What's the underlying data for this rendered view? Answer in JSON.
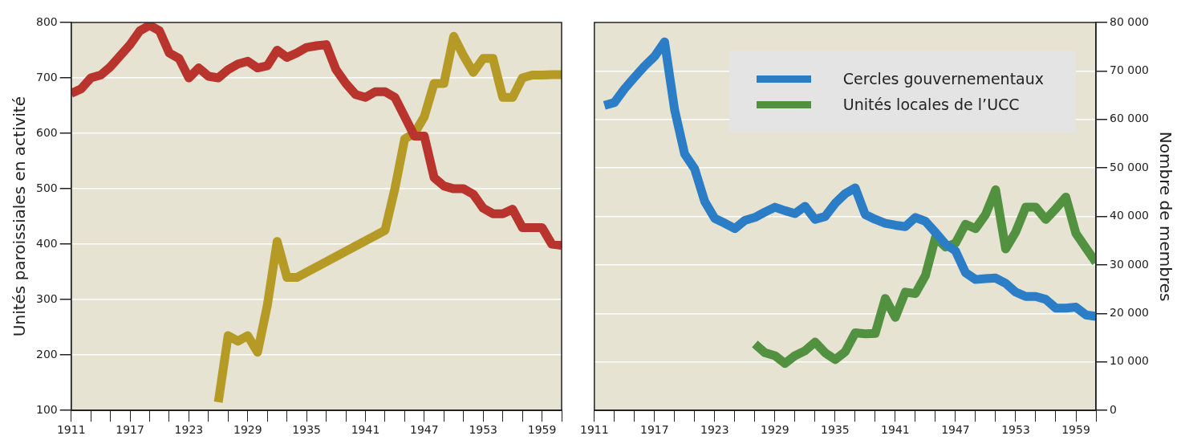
{
  "chart_data": [
    {
      "type": "line",
      "ylabel": "Unités paroissiales en activité",
      "xlim": [
        1911,
        1961
      ],
      "xticks": [
        1911,
        {
          "value": 1913,
          "label": null
        },
        {
          "value": 1915,
          "label": null
        },
        1917,
        {
          "value": 1919,
          "label": null
        },
        {
          "value": 1921,
          "label": null
        },
        1923,
        {
          "value": 1925,
          "label": null
        },
        {
          "value": 1927,
          "label": null
        },
        1929,
        {
          "value": 1931,
          "label": null
        },
        {
          "value": 1933,
          "label": null
        },
        1935,
        {
          "value": 1937,
          "label": null
        },
        {
          "value": 1939,
          "label": null
        },
        1941,
        {
          "value": 1943,
          "label": null
        },
        {
          "value": 1945,
          "label": null
        },
        1947,
        {
          "value": 1949,
          "label": null
        },
        {
          "value": 1951,
          "label": null
        },
        1953,
        {
          "value": 1955,
          "label": null
        },
        {
          "value": 1957,
          "label": null
        },
        1959,
        {
          "value": 1961,
          "label": null
        }
      ],
      "ylim": [
        100,
        800
      ],
      "yticks": [
        100,
        200,
        300,
        400,
        500,
        600,
        700,
        800
      ],
      "grid": "y",
      "legend": false,
      "marker": "none",
      "line_style": "solid",
      "series": [
        {
          "color": "#b8342c",
          "x": [
            1911,
            1912,
            1913,
            1914,
            1915,
            1916,
            1917,
            1918,
            1919,
            1920,
            1921,
            1922,
            1923,
            1924,
            1925,
            1926,
            1927,
            1928,
            1929,
            1930,
            1931,
            1932,
            1933,
            1934,
            1935,
            1936,
            1937,
            1938,
            1939,
            1940,
            1941,
            1942,
            1943,
            1944,
            1945,
            1946,
            1947,
            1948,
            1949,
            1950,
            1951,
            1952,
            1953,
            1954,
            1955,
            1956,
            1957,
            1958,
            1959,
            1960,
            1961
          ],
          "values": [
            672,
            680,
            700,
            705,
            720,
            740,
            760,
            785,
            795,
            785,
            745,
            735,
            700,
            718,
            703,
            700,
            715,
            725,
            730,
            718,
            722,
            750,
            737,
            745,
            755,
            758,
            760,
            715,
            690,
            670,
            665,
            675,
            675,
            665,
            630,
            595,
            595,
            520,
            505,
            500,
            500,
            490,
            465,
            455,
            455,
            463,
            430,
            430,
            430,
            400,
            398
          ]
        },
        {
          "color": "#b59a26",
          "x": [
            1926,
            1927,
            1928,
            1929,
            1930,
            1931,
            1932,
            1933,
            1934,
            1943,
            1944,
            1945,
            1946,
            1947,
            1948,
            1949,
            1950,
            1951,
            1952,
            1953,
            1954,
            1955,
            1956,
            1957,
            1958,
            1959,
            1960,
            1961
          ],
          "values": [
            115,
            235,
            225,
            235,
            205,
            290,
            405,
            340,
            340,
            425,
            500,
            590,
            600,
            630,
            690,
            690,
            775,
            740,
            710,
            735,
            735,
            665,
            665,
            700,
            705,
            705,
            706,
            706
          ]
        }
      ]
    },
    {
      "type": "line",
      "y2label": "Nombre de membres",
      "xlim": [
        1911,
        1961
      ],
      "xticks": [
        1911,
        {
          "value": 1913,
          "label": null
        },
        {
          "value": 1915,
          "label": null
        },
        1917,
        {
          "value": 1919,
          "label": null
        },
        {
          "value": 1921,
          "label": null
        },
        1923,
        {
          "value": 1925,
          "label": null
        },
        {
          "value": 1927,
          "label": null
        },
        1929,
        {
          "value": 1931,
          "label": null
        },
        {
          "value": 1933,
          "label": null
        },
        1935,
        {
          "value": 1937,
          "label": null
        },
        {
          "value": 1939,
          "label": null
        },
        1941,
        {
          "value": 1943,
          "label": null
        },
        {
          "value": 1945,
          "label": null
        },
        1947,
        {
          "value": 1949,
          "label": null
        },
        {
          "value": 1951,
          "label": null
        },
        1953,
        {
          "value": 1955,
          "label": null
        },
        {
          "value": 1957,
          "label": null
        },
        1959,
        {
          "value": 1961,
          "label": null
        }
      ],
      "y2lim": [
        0,
        80000
      ],
      "y2ticks": [
        0,
        {
          "value": 10000,
          "label": "10 000"
        },
        {
          "value": 20000,
          "label": "20 000"
        },
        {
          "value": 30000,
          "label": "30 000"
        },
        {
          "value": 40000,
          "label": "40 000"
        },
        {
          "value": 50000,
          "label": "50 000"
        },
        {
          "value": 60000,
          "label": "60 000"
        },
        {
          "value": 70000,
          "label": "70 000"
        },
        {
          "value": 80000,
          "label": "80 000"
        }
      ],
      "grid": "y",
      "legend": "top right",
      "marker": "none",
      "line_style": "solid",
      "series": [
        {
          "name": "Cercles gouvernementaux",
          "color": "#2b7dc6",
          "axis": "y2",
          "x": [
            1912,
            1913,
            1914,
            1915,
            1916,
            1917,
            1918,
            1919,
            1920,
            1921,
            1922,
            1923,
            1924,
            1925,
            1926,
            1927,
            1928,
            1929,
            1930,
            1931,
            1932,
            1933,
            1934,
            1935,
            1936,
            1937,
            1938,
            1939,
            1940,
            1941,
            1942,
            1943,
            1944,
            1945,
            1946,
            1947,
            1948,
            1949,
            1950,
            1951,
            1952,
            1953,
            1954,
            1955,
            1956,
            1957,
            1958,
            1959,
            1960,
            1961
          ],
          "values": [
            62900,
            63500,
            66300,
            68700,
            71000,
            73000,
            76000,
            62000,
            52900,
            49800,
            43100,
            39600,
            38600,
            37500,
            39200,
            39800,
            40900,
            41900,
            41200,
            40600,
            42100,
            39400,
            40000,
            42700,
            44700,
            45900,
            40400,
            39400,
            38600,
            38200,
            37900,
            39800,
            39000,
            36700,
            34300,
            32900,
            28400,
            27000,
            27200,
            27300,
            26200,
            24400,
            23500,
            23500,
            22900,
            21100,
            21100,
            21300,
            19700,
            19400
          ]
        },
        {
          "name": "Unités locales de l’UCC",
          "color": "#519140",
          "axis": "y2",
          "x": [
            1927,
            1928,
            1929,
            1930,
            1931,
            1932,
            1933,
            1934,
            1935,
            1936,
            1937,
            1938,
            1939,
            1940,
            1941,
            1942,
            1943,
            1944,
            1945,
            1946,
            1947,
            1948,
            1949,
            1950,
            1951,
            1952,
            1953,
            1954,
            1955,
            1956,
            1957,
            1958,
            1959,
            1960,
            1961
          ],
          "values": [
            13700,
            11900,
            11300,
            9700,
            11300,
            12300,
            14100,
            11900,
            10500,
            12100,
            16000,
            15800,
            15900,
            23100,
            19200,
            24400,
            24100,
            27800,
            35700,
            33700,
            34500,
            38400,
            37500,
            40400,
            45500,
            33300,
            36800,
            41900,
            41900,
            39400,
            41600,
            44000,
            36500,
            33500,
            30500
          ]
        }
      ]
    }
  ]
}
